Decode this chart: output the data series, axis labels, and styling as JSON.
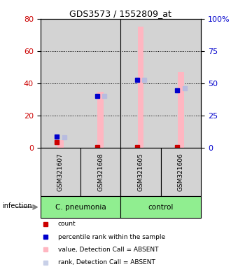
{
  "title": "GDS3573 / 1552809_at",
  "samples": [
    "GSM321607",
    "GSM321608",
    "GSM321605",
    "GSM321606"
  ],
  "pink_bars": [
    5.0,
    35.0,
    75.0,
    47.0
  ],
  "rank_absent": [
    8.5,
    40.5,
    53.0,
    46.0
  ],
  "count_vals": [
    3.5,
    0.4,
    0.4,
    0.4
  ],
  "percentile_vals": [
    9.0,
    40.0,
    52.5,
    44.5
  ],
  "ylim_left": [
    0,
    80
  ],
  "ylim_right": [
    0,
    100
  ],
  "yticks_left": [
    0,
    20,
    40,
    60,
    80
  ],
  "yticks_right": [
    0,
    25,
    50,
    75,
    100
  ],
  "left_color": "#cc0000",
  "right_color": "#0000cc",
  "background_color": "#ffffff",
  "column_bg": "#d3d3d3",
  "group_bg_cp": "#90ee90",
  "group_bg_ctrl": "#90ee90",
  "legend_items": [
    {
      "color": "#cc0000",
      "label": "count"
    },
    {
      "color": "#0000cc",
      "label": "percentile rank within the sample"
    },
    {
      "color": "#ffb6c1",
      "label": "value, Detection Call = ABSENT"
    },
    {
      "color": "#c8d0e8",
      "label": "rank, Detection Call = ABSENT"
    }
  ]
}
